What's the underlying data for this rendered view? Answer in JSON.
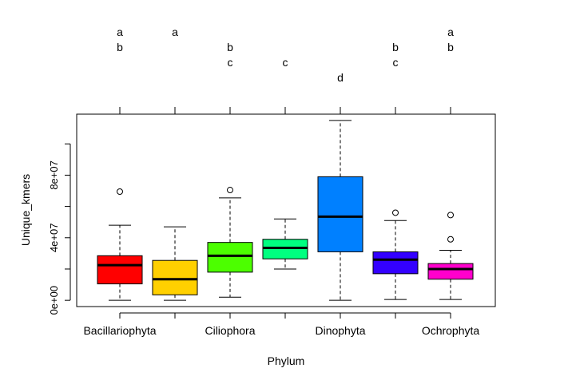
{
  "chart_data": {
    "type": "boxplot",
    "title": "",
    "xlabel": "Phylum",
    "ylabel": "Unique_kmers",
    "ylim": [
      -4000000,
      119000000
    ],
    "y_ticks": [
      0,
      20000000,
      40000000,
      60000000,
      80000000,
      100000000
    ],
    "y_tick_labels": [
      "0e+00",
      "",
      "4e+07",
      "",
      "8e+07",
      ""
    ],
    "grid": false,
    "categories": [
      "Bacillariophyta",
      "",
      "Ciliophora",
      "",
      "Dinophyta",
      "",
      "Ochrophyta"
    ],
    "groups": [
      {
        "color": "#ff0000",
        "min": 0,
        "q1": 10500000,
        "median": 22500000,
        "q3": 28500000,
        "max": 48000000,
        "outliers": [
          69500000
        ],
        "letters": [
          "a",
          "b"
        ]
      },
      {
        "color": "#ffd000",
        "min": 0,
        "q1": 3500000,
        "median": 13500000,
        "q3": 25500000,
        "max": 47000000,
        "outliers": [],
        "letters": [
          "a"
        ]
      },
      {
        "color": "#4cff00",
        "min": 2000000,
        "q1": 18000000,
        "median": 28500000,
        "q3": 37000000,
        "max": 65500000,
        "outliers": [
          70500000
        ],
        "letters": [
          "b",
          "c"
        ]
      },
      {
        "color": "#00ff80",
        "min": 20000000,
        "q1": 26500000,
        "median": 33500000,
        "q3": 39000000,
        "max": 52000000,
        "outliers": [],
        "letters": [
          "c"
        ]
      },
      {
        "color": "#0080ff",
        "min": 0,
        "q1": 31000000,
        "median": 53500000,
        "q3": 79000000,
        "max": 115000000,
        "outliers": [],
        "letters": [
          "d"
        ]
      },
      {
        "color": "#3300ff",
        "min": 500000,
        "q1": 17000000,
        "median": 26000000,
        "q3": 31000000,
        "max": 51000000,
        "outliers": [
          56000000
        ],
        "letters": [
          "b",
          "c"
        ]
      },
      {
        "color": "#ff00cc",
        "min": 500000,
        "q1": 13500000,
        "median": 20000000,
        "q3": 23500000,
        "max": 32000000,
        "outliers": [
          39000000,
          54500000
        ],
        "letters": [
          "a",
          "b"
        ]
      }
    ]
  }
}
